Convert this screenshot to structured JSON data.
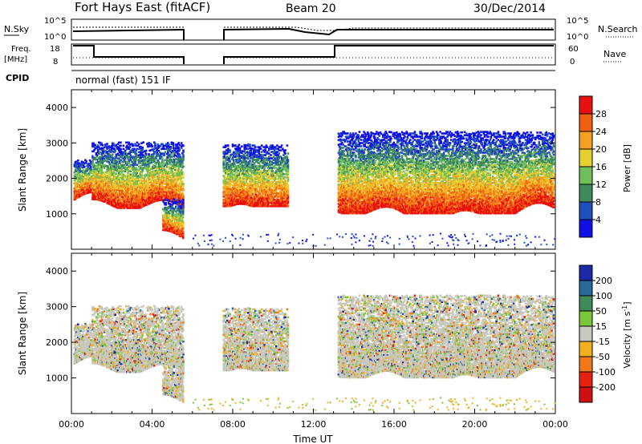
{
  "header": {
    "station": "Fort Hays East (fitACF)",
    "beam": "Beam 20",
    "date": "30/Dec/2014"
  },
  "param_panel": {
    "nsky_label": "N.Sky",
    "nsky_ticks": [
      "10^5",
      "10^0"
    ],
    "nsearch_label": "N.Search",
    "nsearch_ticks": [
      "10^5",
      "10^0"
    ],
    "freq_label": "Freq.",
    "freq_unit": "[MHz]",
    "freq_ticks": [
      "18",
      "8"
    ],
    "nave_label": "Nave",
    "nave_ticks": [
      "60",
      "0"
    ],
    "cpid_label": "CPID",
    "cpid_text": "normal (fast) 151 IF"
  },
  "chart_data": [
    {
      "type": "heatmap",
      "name": "power",
      "ylabel": "Slant Range [km]",
      "xlabel": "",
      "ylim": [
        0,
        4500
      ],
      "yticks": [
        "1000",
        "2000",
        "3000",
        "4000"
      ],
      "colorbar": {
        "label": "Power [dB]",
        "ticks": [
          "4",
          "8",
          "12",
          "16",
          "20",
          "24",
          "28"
        ],
        "colors": [
          "#1010e6",
          "#2050c0",
          "#3f8a5a",
          "#6fbf5a",
          "#e6d030",
          "#f5a020",
          "#f06010",
          "#e81010"
        ]
      },
      "echo_regions": [
        {
          "t": [
            0.1,
            1.0
          ],
          "r": [
            1350,
            2500
          ]
        },
        {
          "t": [
            1.0,
            5.5
          ],
          "r": [
            1150,
            3000
          ]
        },
        {
          "t": [
            4.5,
            5.5
          ],
          "r": [
            300,
            1400
          ]
        },
        {
          "t": [
            7.5,
            10.7
          ],
          "r": [
            1200,
            2950
          ]
        },
        {
          "t": [
            13.2,
            23.9
          ],
          "r": [
            1000,
            3300
          ]
        }
      ]
    },
    {
      "type": "heatmap",
      "name": "velocity",
      "ylabel": "Slant Range [km]",
      "xlabel": "Time UT",
      "ylim": [
        0,
        4500
      ],
      "yticks": [
        "1000",
        "2000",
        "3000",
        "4000"
      ],
      "xticks": [
        "00:00",
        "04:00",
        "08:00",
        "12:00",
        "16:00",
        "20:00",
        "00:00"
      ],
      "colorbar": {
        "label": "Velocity [m s^-1]",
        "ticks": [
          "200",
          "100",
          "50",
          "15",
          "-15",
          "-50",
          "-100",
          "-200"
        ],
        "colors": [
          "#1a2aa8",
          "#2a6a9a",
          "#3f8a5a",
          "#7cc63a",
          "#c8c8c0",
          "#f2b020",
          "#f07818",
          "#e82010",
          "#d01010"
        ]
      }
    }
  ]
}
